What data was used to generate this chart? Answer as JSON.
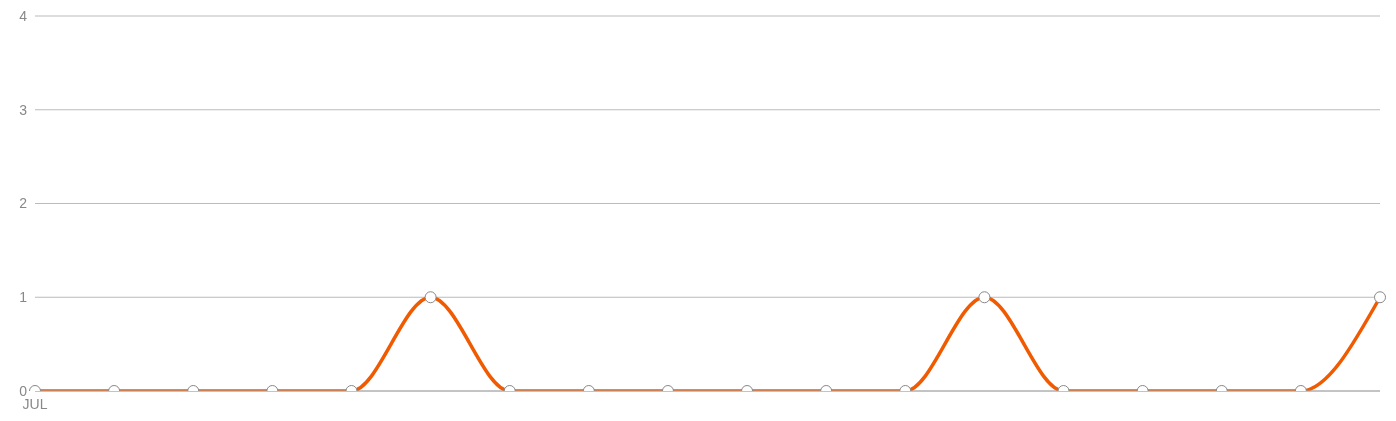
{
  "chart_data": {
    "type": "line",
    "categories": [
      "JUL",
      null,
      null,
      null,
      null,
      null,
      null,
      null,
      null,
      null,
      null,
      null,
      null,
      null,
      null,
      null,
      null,
      null
    ],
    "series": [
      {
        "color": "#f05a00",
        "values": [
          0,
          0,
          0,
          0,
          0,
          1,
          0,
          0,
          0,
          0,
          0,
          0,
          1,
          0,
          0,
          0,
          0,
          1
        ]
      }
    ],
    "ylim": [
      0,
      4
    ],
    "yticks": [
      0,
      1,
      2,
      3,
      4
    ],
    "grid": "y",
    "marker": "circle",
    "line_style": "solid"
  }
}
